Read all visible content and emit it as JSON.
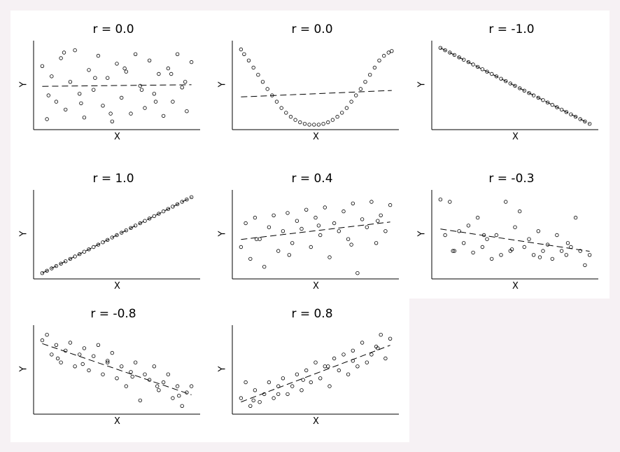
{
  "chart_data": [
    {
      "type": "scatter",
      "title": "r = 0.0",
      "xlabel": "X",
      "ylabel": "Y",
      "trend": "flat",
      "x": [
        0.02,
        0.05,
        0.08,
        0.11,
        0.14,
        0.17,
        0.2,
        0.23,
        0.26,
        0.29,
        0.32,
        0.35,
        0.38,
        0.41,
        0.44,
        0.47,
        0.5,
        0.53,
        0.56,
        0.59,
        0.62,
        0.65,
        0.68,
        0.71,
        0.74,
        0.77,
        0.8,
        0.83,
        0.86,
        0.89,
        0.92,
        0.95,
        0.98,
        0.06,
        0.16,
        0.27,
        0.36,
        0.46,
        0.55,
        0.66,
        0.75,
        0.85,
        0.94
      ],
      "y": [
        0.75,
        0.08,
        0.62,
        0.3,
        0.85,
        0.2,
        0.55,
        0.95,
        0.4,
        0.1,
        0.7,
        0.45,
        0.88,
        0.25,
        0.6,
        0.05,
        0.78,
        0.35,
        0.68,
        0.15,
        0.9,
        0.5,
        0.22,
        0.82,
        0.4,
        0.65,
        0.12,
        0.72,
        0.3,
        0.9,
        0.48,
        0.18,
        0.8,
        0.38,
        0.92,
        0.28,
        0.6,
        0.15,
        0.72,
        0.45,
        0.3,
        0.65,
        0.55
      ]
    },
    {
      "type": "scatter",
      "title": "r = 0.0",
      "xlabel": "X",
      "ylabel": "Y",
      "trend": "flat-quadratic",
      "x": [
        0.02,
        0.04,
        0.07,
        0.1,
        0.13,
        0.16,
        0.19,
        0.22,
        0.25,
        0.28,
        0.31,
        0.34,
        0.37,
        0.4,
        0.43,
        0.46,
        0.49,
        0.52,
        0.55,
        0.58,
        0.61,
        0.64,
        0.67,
        0.7,
        0.73,
        0.76,
        0.79,
        0.82,
        0.85,
        0.88,
        0.91,
        0.94,
        0.97,
        0.99
      ],
      "y": [
        0.96,
        0.9,
        0.82,
        0.73,
        0.64,
        0.55,
        0.46,
        0.38,
        0.3,
        0.22,
        0.16,
        0.11,
        0.07,
        0.04,
        0.02,
        0.01,
        0.01,
        0.01,
        0.02,
        0.04,
        0.07,
        0.11,
        0.16,
        0.22,
        0.3,
        0.38,
        0.46,
        0.55,
        0.64,
        0.73,
        0.82,
        0.88,
        0.92,
        0.94
      ]
    },
    {
      "type": "scatter",
      "title": "r = -1.0",
      "xlabel": "X",
      "ylabel": "Y",
      "trend": "decreasing",
      "x": [
        0.02,
        0.05,
        0.08,
        0.11,
        0.14,
        0.17,
        0.2,
        0.23,
        0.26,
        0.29,
        0.32,
        0.35,
        0.38,
        0.41,
        0.44,
        0.47,
        0.5,
        0.53,
        0.56,
        0.59,
        0.62,
        0.65,
        0.68,
        0.71,
        0.74,
        0.77,
        0.8,
        0.83,
        0.86,
        0.89,
        0.92,
        0.95,
        0.98
      ],
      "y": [
        0.98,
        0.95,
        0.92,
        0.89,
        0.86,
        0.83,
        0.8,
        0.77,
        0.74,
        0.71,
        0.68,
        0.65,
        0.62,
        0.59,
        0.56,
        0.53,
        0.5,
        0.47,
        0.44,
        0.41,
        0.38,
        0.35,
        0.32,
        0.29,
        0.26,
        0.23,
        0.2,
        0.17,
        0.14,
        0.11,
        0.08,
        0.05,
        0.02
      ]
    },
    {
      "type": "scatter",
      "title": "r = 1.0",
      "xlabel": "X",
      "ylabel": "Y",
      "trend": "increasing",
      "x": [
        0.02,
        0.05,
        0.08,
        0.11,
        0.14,
        0.17,
        0.2,
        0.23,
        0.26,
        0.29,
        0.32,
        0.35,
        0.38,
        0.41,
        0.44,
        0.47,
        0.5,
        0.53,
        0.56,
        0.59,
        0.62,
        0.65,
        0.68,
        0.71,
        0.74,
        0.77,
        0.8,
        0.83,
        0.86,
        0.89,
        0.92,
        0.95,
        0.98
      ],
      "y": [
        0.02,
        0.05,
        0.08,
        0.11,
        0.14,
        0.17,
        0.2,
        0.23,
        0.26,
        0.29,
        0.32,
        0.35,
        0.38,
        0.41,
        0.44,
        0.47,
        0.5,
        0.53,
        0.56,
        0.59,
        0.62,
        0.65,
        0.68,
        0.71,
        0.74,
        0.77,
        0.8,
        0.83,
        0.86,
        0.89,
        0.92,
        0.95,
        0.98
      ]
    },
    {
      "type": "scatter",
      "title": "r = 0.4",
      "xlabel": "X",
      "ylabel": "Y",
      "trend": "slight-increase",
      "x": [
        0.02,
        0.05,
        0.08,
        0.11,
        0.14,
        0.17,
        0.2,
        0.23,
        0.26,
        0.29,
        0.32,
        0.35,
        0.38,
        0.41,
        0.44,
        0.47,
        0.5,
        0.53,
        0.56,
        0.59,
        0.62,
        0.65,
        0.68,
        0.71,
        0.74,
        0.77,
        0.8,
        0.83,
        0.86,
        0.89,
        0.92,
        0.95,
        0.98,
        0.12,
        0.33,
        0.52,
        0.73,
        0.9
      ],
      "y": [
        0.35,
        0.65,
        0.2,
        0.72,
        0.45,
        0.1,
        0.6,
        0.75,
        0.3,
        0.55,
        0.78,
        0.4,
        0.68,
        0.58,
        0.82,
        0.35,
        0.72,
        0.5,
        0.85,
        0.22,
        0.65,
        0.55,
        0.8,
        0.45,
        0.9,
        0.02,
        0.7,
        0.6,
        0.92,
        0.4,
        0.75,
        0.55,
        0.88,
        0.45,
        0.25,
        0.62,
        0.38,
        0.68
      ]
    },
    {
      "type": "scatter",
      "title": "r = -0.3",
      "xlabel": "X",
      "ylabel": "Y",
      "trend": "slight-decrease",
      "x": [
        0.02,
        0.05,
        0.08,
        0.11,
        0.14,
        0.17,
        0.2,
        0.23,
        0.26,
        0.29,
        0.32,
        0.35,
        0.38,
        0.41,
        0.44,
        0.47,
        0.5,
        0.53,
        0.56,
        0.59,
        0.62,
        0.65,
        0.68,
        0.71,
        0.74,
        0.77,
        0.8,
        0.83,
        0.86,
        0.89,
        0.92,
        0.95,
        0.98,
        0.1,
        0.3,
        0.48,
        0.66,
        0.84
      ],
      "y": [
        0.95,
        0.5,
        0.92,
        0.3,
        0.55,
        0.4,
        0.62,
        0.28,
        0.72,
        0.35,
        0.45,
        0.2,
        0.5,
        0.25,
        0.92,
        0.3,
        0.6,
        0.8,
        0.35,
        0.45,
        0.25,
        0.55,
        0.3,
        0.38,
        0.2,
        0.5,
        0.3,
        0.25,
        0.35,
        0.72,
        0.3,
        0.12,
        0.25,
        0.3,
        0.5,
        0.32,
        0.22,
        0.4
      ]
    },
    {
      "type": "scatter",
      "title": "r = -0.8",
      "xlabel": "X",
      "ylabel": "Y",
      "trend": "decreasing",
      "x": [
        0.02,
        0.05,
        0.08,
        0.11,
        0.14,
        0.17,
        0.2,
        0.23,
        0.26,
        0.29,
        0.32,
        0.35,
        0.38,
        0.41,
        0.44,
        0.47,
        0.5,
        0.53,
        0.56,
        0.59,
        0.62,
        0.65,
        0.68,
        0.71,
        0.74,
        0.77,
        0.8,
        0.83,
        0.86,
        0.89,
        0.92,
        0.95,
        0.98,
        0.12,
        0.28,
        0.44,
        0.6,
        0.76,
        0.9
      ],
      "y": [
        0.88,
        0.95,
        0.7,
        0.82,
        0.6,
        0.75,
        0.85,
        0.55,
        0.7,
        0.78,
        0.5,
        0.68,
        0.82,
        0.45,
        0.62,
        0.72,
        0.4,
        0.55,
        0.3,
        0.48,
        0.6,
        0.12,
        0.45,
        0.38,
        0.55,
        0.25,
        0.35,
        0.45,
        0.15,
        0.3,
        0.05,
        0.22,
        0.3,
        0.65,
        0.58,
        0.6,
        0.42,
        0.3,
        0.18
      ]
    },
    {
      "type": "scatter",
      "title": "r = 0.8",
      "xlabel": "X",
      "ylabel": "Y",
      "trend": "increasing",
      "x": [
        0.02,
        0.05,
        0.08,
        0.11,
        0.14,
        0.17,
        0.2,
        0.23,
        0.26,
        0.29,
        0.32,
        0.35,
        0.38,
        0.41,
        0.44,
        0.47,
        0.5,
        0.53,
        0.56,
        0.59,
        0.62,
        0.65,
        0.68,
        0.71,
        0.74,
        0.77,
        0.8,
        0.83,
        0.86,
        0.89,
        0.92,
        0.95,
        0.98,
        0.1,
        0.26,
        0.42,
        0.58,
        0.74,
        0.9
      ],
      "y": [
        0.15,
        0.35,
        0.05,
        0.25,
        0.1,
        0.2,
        0.35,
        0.15,
        0.3,
        0.4,
        0.2,
        0.3,
        0.45,
        0.25,
        0.5,
        0.35,
        0.6,
        0.4,
        0.55,
        0.3,
        0.65,
        0.5,
        0.7,
        0.45,
        0.75,
        0.55,
        0.85,
        0.6,
        0.7,
        0.8,
        0.95,
        0.65,
        0.9,
        0.12,
        0.2,
        0.38,
        0.55,
        0.62,
        0.78
      ]
    }
  ]
}
